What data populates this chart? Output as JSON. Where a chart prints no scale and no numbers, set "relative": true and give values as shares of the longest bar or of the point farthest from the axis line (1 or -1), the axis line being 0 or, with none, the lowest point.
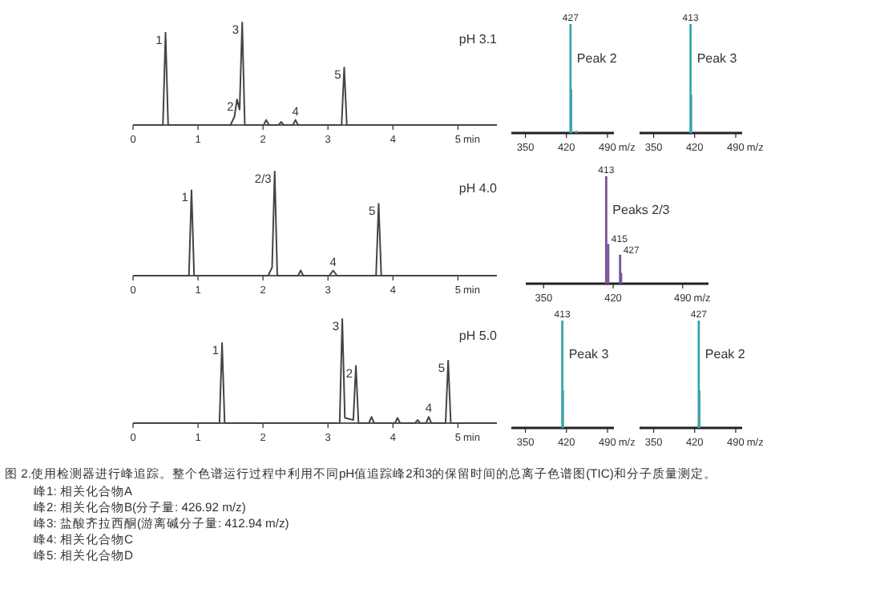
{
  "chart_data": [
    {
      "type": "line",
      "relative": true,
      "color": "#444444",
      "xlim": [
        0,
        5.6
      ],
      "xticks": [
        0,
        1,
        2,
        3,
        4,
        5
      ],
      "xlabel": "min",
      "x": [
        0,
        0.46,
        0.5,
        0.54,
        1.5,
        1.56,
        1.6,
        1.64,
        1.68,
        1.72,
        2.01,
        2.05,
        2.09,
        2.24,
        2.28,
        2.32,
        2.46,
        2.5,
        2.54,
        3.21,
        3.25,
        3.29,
        5.6
      ],
      "values": [
        0,
        0,
        0.9,
        0,
        0,
        0.08,
        0.25,
        0.15,
        1,
        0,
        0,
        0.05,
        0,
        0,
        0.03,
        0,
        0,
        0.05,
        0,
        0,
        0.56,
        0,
        0
      ],
      "annotations": [
        "pH 3.1",
        {
          "text": "1",
          "x": 0.5,
          "y": 0.9
        },
        {
          "text": "2",
          "x": 1.6,
          "y": 0.25
        },
        {
          "text": "3",
          "x": 1.68,
          "y": 1
        },
        {
          "text": "4",
          "x": 2.5,
          "y": 0.05
        },
        {
          "text": "5",
          "x": 3.25,
          "y": 0.56
        }
      ]
    },
    {
      "type": "bar",
      "relative": true,
      "color": "#3aa6a8",
      "xlim": [
        326,
        501
      ],
      "xticks": [
        350,
        420,
        490
      ],
      "xlabel": "m/z",
      "x": [
        427,
        428,
        437
      ],
      "values": [
        1,
        0.4,
        0.02
      ],
      "annotations": [
        "Peak 2",
        {
          "text": "427",
          "x": 427,
          "y": 1
        }
      ]
    },
    {
      "type": "bar",
      "relative": true,
      "color": "#3aa6a8",
      "xlim": [
        326,
        501
      ],
      "xticks": [
        350,
        420,
        490
      ],
      "xlabel": "m/z",
      "x": [
        413,
        414
      ],
      "values": [
        1,
        0.35
      ],
      "annotations": [
        "Peak 3",
        {
          "text": "413",
          "x": 413,
          "y": 1
        }
      ]
    },
    {
      "type": "line",
      "relative": true,
      "color": "#444444",
      "xlim": [
        0,
        5.6
      ],
      "xticks": [
        0,
        1,
        2,
        3,
        4,
        5
      ],
      "xlabel": "min",
      "x": [
        0,
        0.86,
        0.9,
        0.94,
        2.08,
        2.14,
        2.18,
        2.22,
        2.54,
        2.58,
        2.62,
        3.02,
        3.08,
        3.14,
        3.74,
        3.78,
        3.82,
        5.6
      ],
      "values": [
        0,
        0,
        0.82,
        0,
        0,
        0.08,
        1,
        0,
        0,
        0.05,
        0,
        0,
        0.05,
        0,
        0,
        0.69,
        0,
        0
      ],
      "annotations": [
        "pH 4.0",
        {
          "text": "1",
          "x": 0.9,
          "y": 0.82
        },
        {
          "text": "2/3",
          "x": 2.18,
          "y": 1
        },
        {
          "text": "4",
          "x": 3.08,
          "y": 0.05
        },
        {
          "text": "5",
          "x": 3.78,
          "y": 0.69
        }
      ]
    },
    {
      "type": "bar",
      "relative": true,
      "color": "#7a5296",
      "xlim": [
        332,
        516
      ],
      "xticks": [
        350,
        420,
        490
      ],
      "xlabel": "m/z",
      "x": [
        413,
        414,
        415,
        427,
        428
      ],
      "values": [
        1,
        null,
        0.37,
        0.27,
        0.1
      ],
      "annotations": [
        "Peaks 2/3",
        {
          "text": "413",
          "x": 413,
          "y": 1
        },
        {
          "text": "415",
          "x": 415,
          "y": 0.37
        },
        {
          "text": "427",
          "x": 427,
          "y": 0.27
        }
      ]
    },
    {
      "type": "line",
      "relative": true,
      "color": "#444444",
      "xlim": [
        0,
        5.6
      ],
      "xticks": [
        0,
        1,
        2,
        3,
        4,
        5
      ],
      "xlabel": "min",
      "x": [
        0,
        1.33,
        1.37,
        1.41,
        3.18,
        3.22,
        3.26,
        3.39,
        3.43,
        3.47,
        3.63,
        3.67,
        3.71,
        4.03,
        4.07,
        4.11,
        4.34,
        4.38,
        4.42,
        4.51,
        4.55,
        4.59,
        4.81,
        4.85,
        4.89,
        5.6
      ],
      "values": [
        0,
        0,
        0.77,
        0,
        0,
        1,
        0.05,
        0.03,
        0.55,
        0,
        0,
        0.06,
        0,
        0,
        0.05,
        0,
        0,
        0.03,
        0,
        0,
        0.06,
        0,
        0,
        0.6,
        0,
        0
      ],
      "annotations": [
        "pH 5.0",
        {
          "text": "1",
          "x": 1.37,
          "y": 0.77
        },
        {
          "text": "3",
          "x": 3.22,
          "y": 1
        },
        {
          "text": "2",
          "x": 3.43,
          "y": 0.55
        },
        {
          "text": "4",
          "x": 4.55,
          "y": 0.06
        },
        {
          "text": "5",
          "x": 4.85,
          "y": 0.6
        }
      ]
    },
    {
      "type": "bar",
      "relative": true,
      "color": "#3aa6a8",
      "xlim": [
        326,
        501
      ],
      "xticks": [
        350,
        420,
        490
      ],
      "xlabel": "m/z",
      "x": [
        413,
        414
      ],
      "values": [
        1,
        0.35
      ],
      "annotations": [
        "Peak 3",
        {
          "text": "413",
          "x": 413,
          "y": 1
        }
      ]
    },
    {
      "type": "bar",
      "relative": true,
      "color": "#3aa6a8",
      "xlim": [
        326,
        501
      ],
      "xticks": [
        350,
        420,
        490
      ],
      "xlabel": "m/z",
      "x": [
        427,
        428
      ],
      "values": [
        1,
        0.35
      ],
      "annotations": [
        "Peak 2",
        {
          "text": "427",
          "x": 427,
          "y": 1
        }
      ]
    },
    {
      "type": "other",
      "title": "图 2.使用检测器进行峰追踪。整个色谱运行过程中利用不同pH值追踪峰2和3的保留时间的总离子色谱图(TIC)和分子质量测定。",
      "annotations": [
        "峰1:  相关化合物A",
        "峰2:  相关化合物B(分子量:  426.92 m/z)",
        "峰3:  盐酸齐拉西酮(游离碱分子量:  412.94 m/z)",
        "峰4:  相关化合物C",
        "峰5:  相关化合物D"
      ]
    }
  ]
}
